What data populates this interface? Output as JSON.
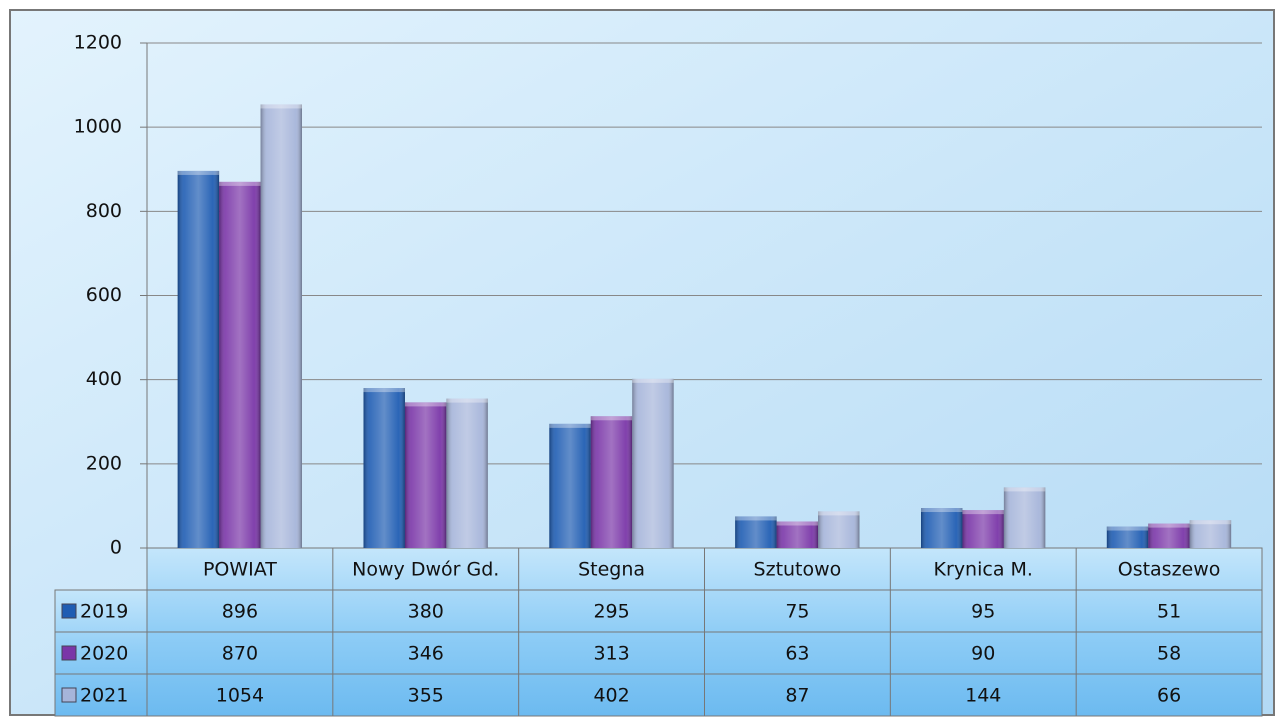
{
  "chart_data": {
    "type": "bar",
    "categories": [
      "POWIAT",
      "Nowy Dwór Gd.",
      "Stegna",
      "Sztutowo",
      "Krynica M.",
      "Ostaszewo"
    ],
    "series": [
      {
        "name": "2019",
        "color": "#1f5db3",
        "values": [
          896,
          380,
          295,
          75,
          95,
          51
        ]
      },
      {
        "name": "2020",
        "color": "#7a36a8",
        "values": [
          870,
          346,
          313,
          63,
          90,
          58
        ]
      },
      {
        "name": "2021",
        "color": "#a6b5da",
        "values": [
          1054,
          355,
          402,
          87,
          144,
          66
        ]
      }
    ],
    "ylim": [
      0,
      1200
    ],
    "yticks": [
      0,
      200,
      400,
      600,
      800,
      1000,
      1200
    ],
    "grid": true
  }
}
